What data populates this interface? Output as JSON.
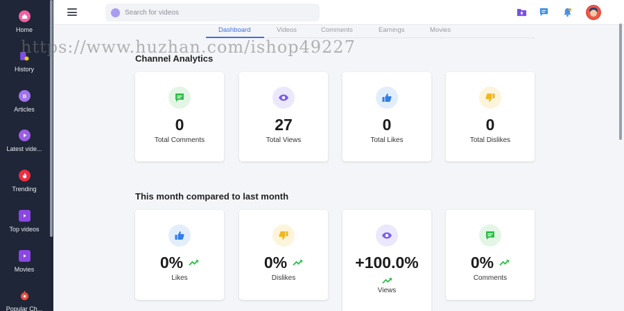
{
  "sidebar": {
    "items": [
      {
        "label": "Home",
        "icon": "home-icon",
        "color": "#f25fa3"
      },
      {
        "label": "History",
        "icon": "history-icon",
        "color": "#7d4ee8"
      },
      {
        "label": "Articles",
        "icon": "articles-icon",
        "color": "#a173ef"
      },
      {
        "label": "Latest vide...",
        "icon": "latest-videos-icon",
        "color": "#9b5de5"
      },
      {
        "label": "Trending",
        "icon": "trending-icon",
        "color": "#ee2d3f"
      },
      {
        "label": "Top videos",
        "icon": "top-videos-icon",
        "color": "#8b46e3"
      },
      {
        "label": "Movies",
        "icon": "movies-icon",
        "color": "#8b46e3"
      },
      {
        "label": "Popular Ch...",
        "icon": "popular-channels-icon",
        "color": "#e84c3d"
      }
    ]
  },
  "search": {
    "placeholder": "Search for videos"
  },
  "tabs": [
    {
      "label": "Dashboard",
      "active": true
    },
    {
      "label": "Videos",
      "active": false
    },
    {
      "label": "Comments",
      "active": false
    },
    {
      "label": "Earnings",
      "active": false
    },
    {
      "label": "Movies",
      "active": false
    }
  ],
  "channel_analytics": {
    "title": "Channel Analytics",
    "cards": [
      {
        "value": "0",
        "label": "Total Comments",
        "icon": "comment-icon",
        "color": "#2fbf4a"
      },
      {
        "value": "27",
        "label": "Total Views",
        "icon": "eye-icon",
        "color": "#7a5cf0"
      },
      {
        "value": "0",
        "label": "Total Likes",
        "icon": "thumb-up-icon",
        "color": "#2f7fe8"
      },
      {
        "value": "0",
        "label": "Total Dislikes",
        "icon": "thumb-down-icon",
        "color": "#f2b620"
      }
    ]
  },
  "monthly": {
    "title": "This month compared to last month",
    "cards": [
      {
        "value": "0%",
        "label": "Likes",
        "icon": "thumb-up-icon",
        "trend": "trending-up-icon"
      },
      {
        "value": "0%",
        "label": "Dislikes",
        "icon": "thumb-down-icon",
        "trend": "trending-up-icon"
      },
      {
        "value": "+100.0%",
        "label": "Views",
        "icon": "eye-icon",
        "trend": "trending-up-icon"
      },
      {
        "value": "0%",
        "label": "Comments",
        "icon": "comment-icon",
        "trend": "trending-up-icon"
      }
    ]
  },
  "watermark": "https://www.huzhan.com/ishop49227",
  "colors": {
    "sidebar_bg": "#1e2637",
    "accent": "#3f6fd8",
    "trend_green": "#2fbf4a"
  }
}
